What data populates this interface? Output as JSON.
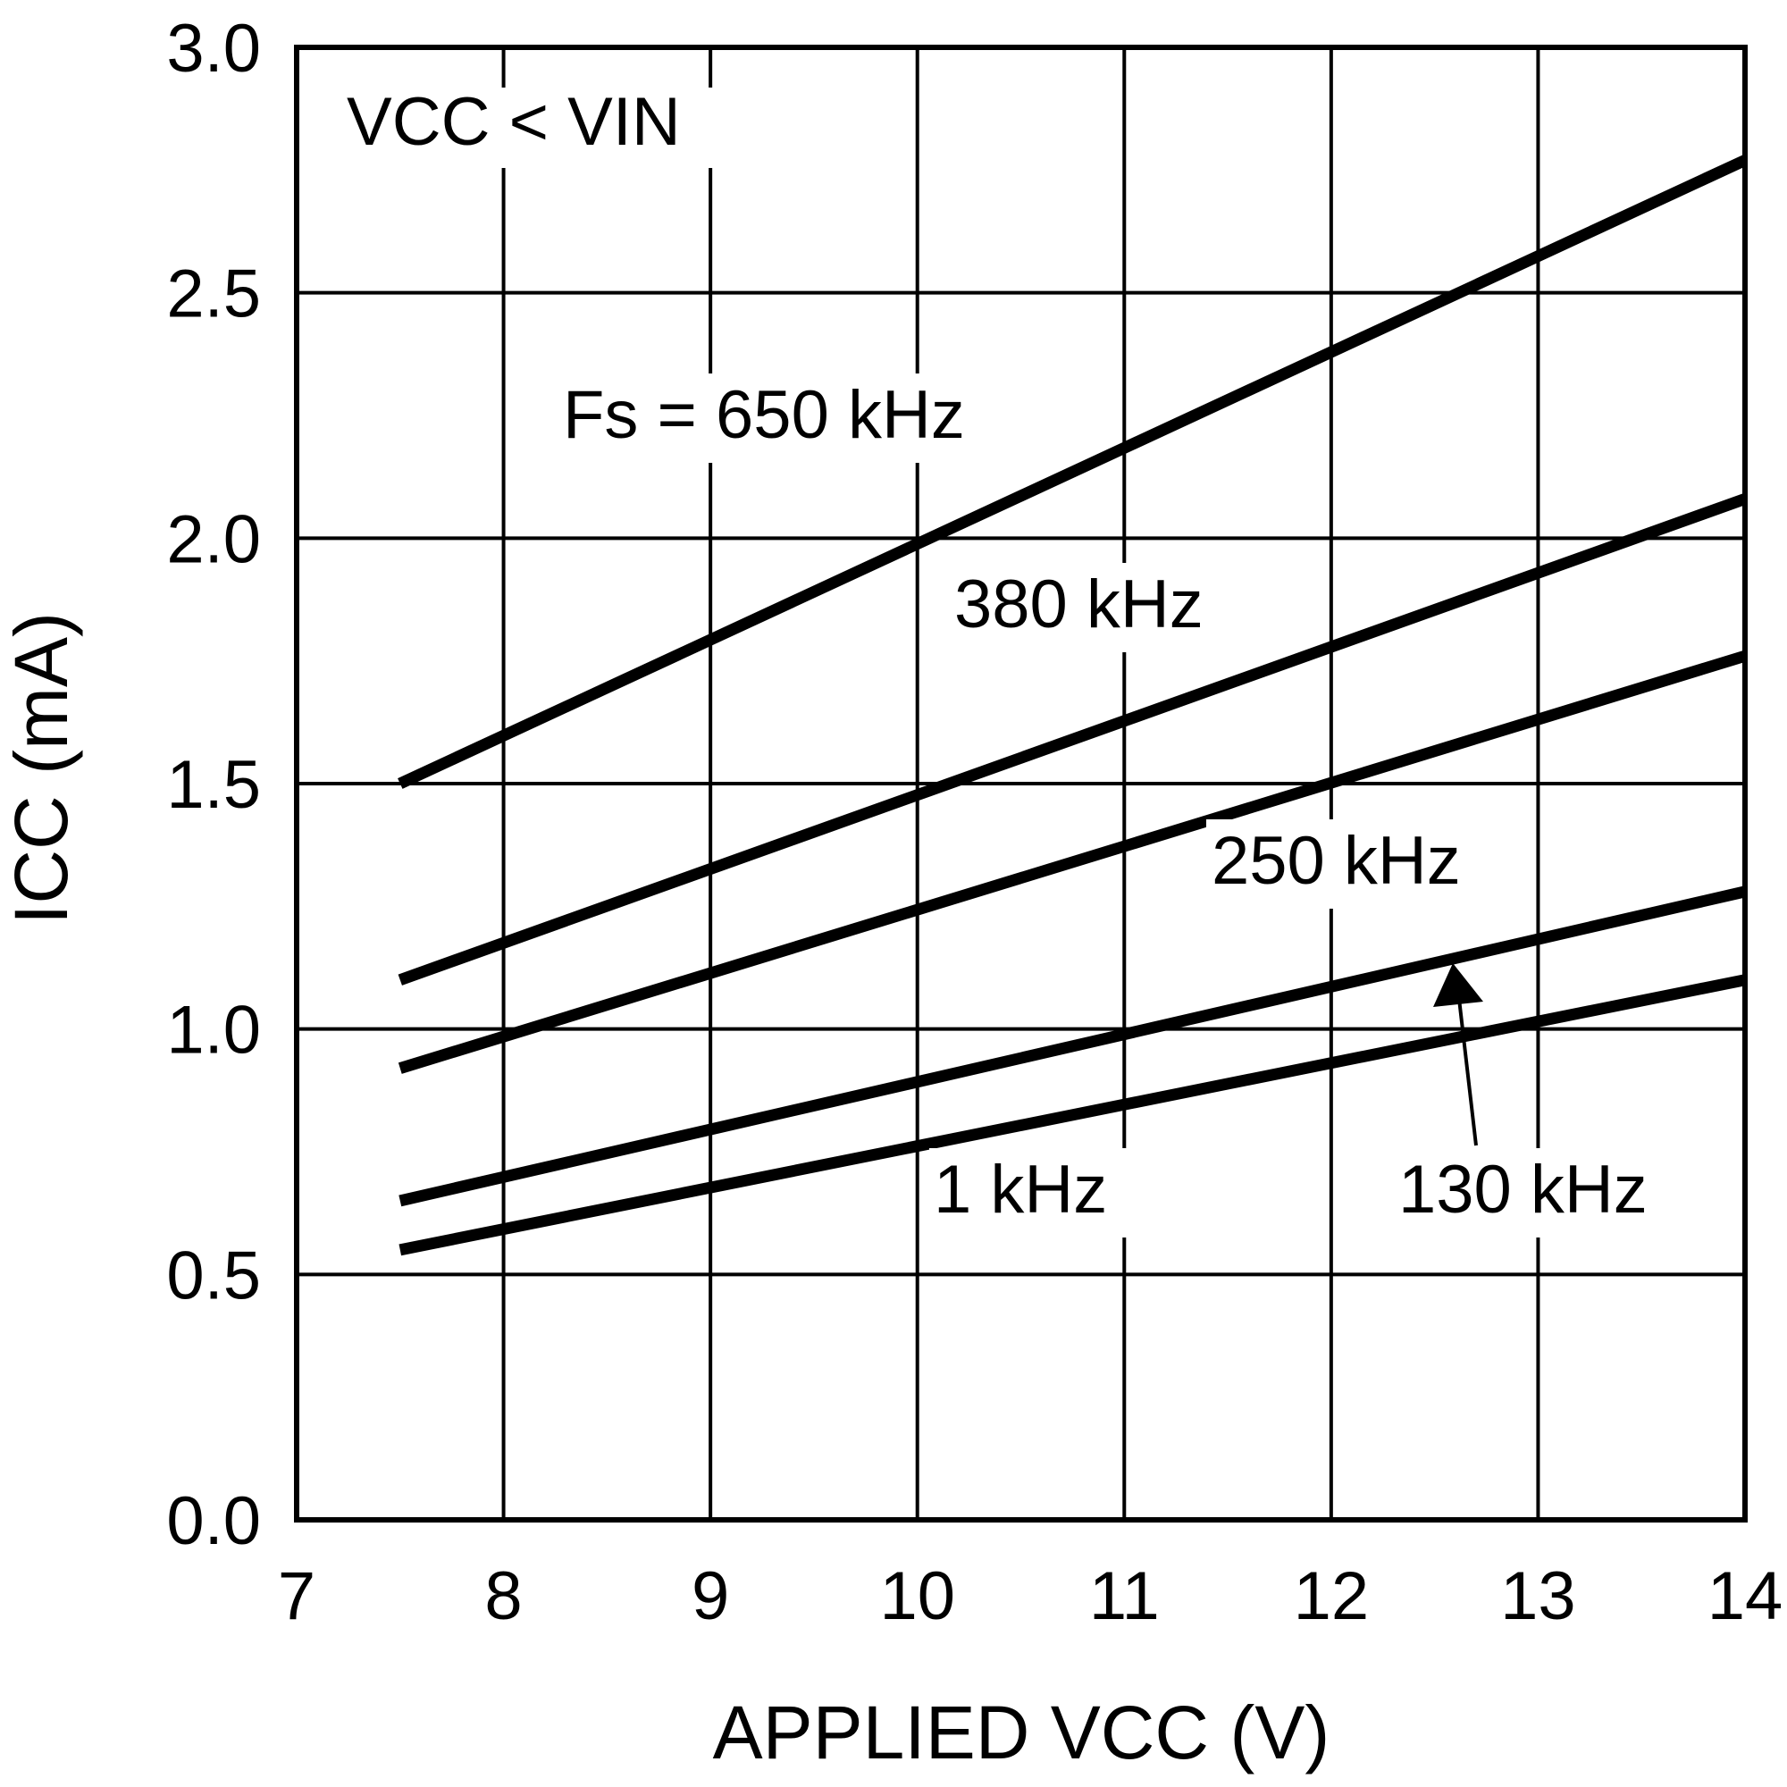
{
  "chart_data": {
    "type": "line",
    "title": "",
    "xlabel": "APPLIED VCC (V)",
    "ylabel": "ICC (mA)",
    "xlim": [
      7,
      14
    ],
    "ylim": [
      0.0,
      3.0
    ],
    "x_ticks": [
      "7",
      "8",
      "9",
      "10",
      "11",
      "12",
      "13",
      "14"
    ],
    "y_ticks": [
      "0.0",
      "0.5",
      "1.0",
      "1.5",
      "2.0",
      "2.5",
      "3.0"
    ],
    "grid": true,
    "series": [
      {
        "name": "650 kHz",
        "x": [
          7.5,
          14
        ],
        "values": [
          1.5,
          2.77
        ]
      },
      {
        "name": "380 kHz",
        "x": [
          7.5,
          14
        ],
        "values": [
          1.1,
          2.08
        ]
      },
      {
        "name": "250 kHz",
        "x": [
          7.5,
          14
        ],
        "values": [
          0.92,
          1.76
        ]
      },
      {
        "name": "130 kHz",
        "x": [
          7.5,
          14
        ],
        "values": [
          0.65,
          1.28
        ]
      },
      {
        "name": "1 kHz",
        "x": [
          7.5,
          14
        ],
        "values": [
          0.55,
          1.1
        ]
      }
    ],
    "annotations": {
      "condition": "VCC < VIN",
      "fs_650": "Fs = 650 kHz",
      "fs_380": "380 kHz",
      "fs_250": "250 kHz",
      "fs_130": "130 kHz",
      "fs_1": "1 kHz"
    },
    "colors": {
      "line": "#000000",
      "grid": "#000000",
      "background": "#ffffff"
    }
  }
}
